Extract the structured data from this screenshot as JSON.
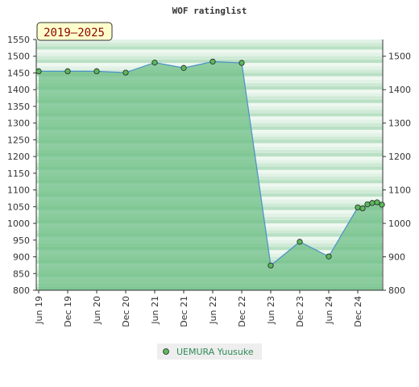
{
  "chart_data": {
    "type": "line",
    "title": "WOF ratinglist",
    "period_label": "2019–2025",
    "xlabel": "",
    "ylabel": "",
    "x_ticks": [
      "Jun 19",
      "Dec 19",
      "Jun 20",
      "Dec 20",
      "Jun 21",
      "Dec 21",
      "Jun 22",
      "Dec 22",
      "Jun 23",
      "Dec 23",
      "Jun 24",
      "Dec 24"
    ],
    "ylim_left": [
      800,
      1550
    ],
    "y_ticks_left": [
      800,
      850,
      900,
      950,
      1000,
      1050,
      1100,
      1150,
      1200,
      1250,
      1300,
      1350,
      1400,
      1450,
      1500,
      1550
    ],
    "ylim_right": [
      800,
      1550
    ],
    "y_ticks_right": [
      800,
      900,
      1000,
      1100,
      1200,
      1300,
      1400,
      1500
    ],
    "grid": "horizontal bands",
    "legend_position": "bottom-center",
    "series": [
      {
        "name": "UEMURA Yuusuke",
        "color": "#5cb85c",
        "fill_color": "#6dbf86",
        "line_color": "#4a90c8",
        "points": [
          {
            "x": "Jun 19",
            "y": 1455
          },
          {
            "x": "Dec 19",
            "y": 1455
          },
          {
            "x": "Jun 20",
            "y": 1455
          },
          {
            "x": "Dec 20",
            "y": 1451
          },
          {
            "x": "Jun 21",
            "y": 1481
          },
          {
            "x": "Dec 21",
            "y": 1465
          },
          {
            "x": "Jun 22",
            "y": 1484
          },
          {
            "x": "Dec 22",
            "y": 1480
          },
          {
            "x": "Jun 23",
            "y": 874
          },
          {
            "x": "Dec 23",
            "y": 945
          },
          {
            "x": "Jun 24",
            "y": 901
          },
          {
            "x": "Dec 24",
            "y": 1048
          },
          {
            "x": "Jan 25",
            "y": 1045
          },
          {
            "x": "Feb 25",
            "y": 1057
          },
          {
            "x": "Mar 25",
            "y": 1061
          },
          {
            "x": "Apr 25",
            "y": 1063
          },
          {
            "x": "May 25",
            "y": 1056
          }
        ]
      }
    ]
  }
}
